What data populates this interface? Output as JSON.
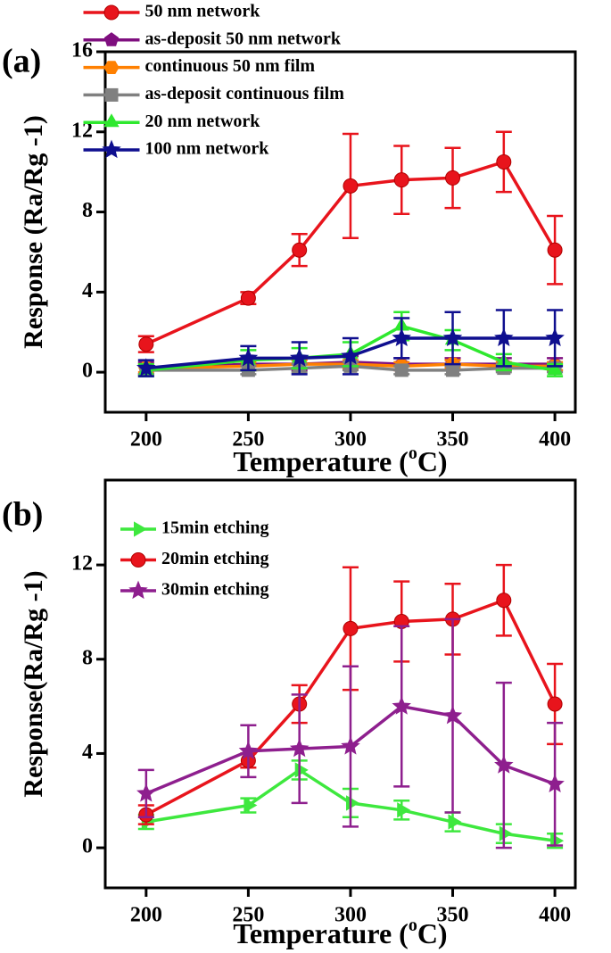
{
  "chart_data": [
    {
      "type": "line",
      "panel_label": "(a)",
      "x_label": [
        "Temperature (",
        "o",
        "C)"
      ],
      "y_label": "Response (Ra/Rg -1)",
      "x": [
        200,
        250,
        275,
        300,
        325,
        350,
        375,
        400
      ],
      "xlim": [
        180,
        410
      ],
      "xticks": [
        200,
        250,
        300,
        350,
        400
      ],
      "ylim": [
        -2,
        16
      ],
      "yticks": [
        0,
        4,
        8,
        12,
        16
      ],
      "legend": "upper left",
      "series": [
        {
          "name": "50 nm network",
          "color": "#e8141c",
          "marker": "circle",
          "values": [
            1.4,
            3.7,
            6.1,
            9.3,
            9.6,
            9.7,
            10.5,
            6.1
          ],
          "errors": [
            0.4,
            0.3,
            0.8,
            2.6,
            1.7,
            1.5,
            1.5,
            1.7
          ]
        },
        {
          "name": "as-deposit 50 nm network",
          "color": "#7f0f7f",
          "marker": "pentagon",
          "values": [
            0.2,
            0.4,
            0.4,
            0.5,
            0.4,
            0.4,
            0.4,
            0.4
          ],
          "errors": [
            0.3,
            0.3,
            0.3,
            0.3,
            0.3,
            0.3,
            0.3,
            0.3
          ]
        },
        {
          "name": "continuous 50 nm film",
          "color": "#ff8000",
          "marker": "hexagon",
          "values": [
            0.2,
            0.3,
            0.4,
            0.4,
            0.3,
            0.4,
            0.3,
            0.3
          ],
          "errors": [
            0.2,
            0.2,
            0.2,
            0.2,
            0.2,
            0.2,
            0.2,
            0.2
          ]
        },
        {
          "name": "as-deposit continuous film",
          "color": "#808080",
          "marker": "square",
          "values": [
            0.1,
            0.1,
            0.2,
            0.3,
            0.1,
            0.1,
            0.2,
            0.2
          ],
          "errors": [
            0.2,
            0.2,
            0.2,
            0.2,
            0.2,
            0.2,
            0.2,
            0.2
          ]
        },
        {
          "name": "20 nm network",
          "color": "#2ee82e",
          "marker": "triangle",
          "values": [
            0.1,
            0.6,
            0.7,
            0.9,
            2.3,
            1.6,
            0.5,
            0.1
          ],
          "errors": [
            0.3,
            0.5,
            0.5,
            0.6,
            0.7,
            0.5,
            0.4,
            0.3
          ]
        },
        {
          "name": "100 nm network",
          "color": "#0f0f8f",
          "marker": "star",
          "values": [
            0.2,
            0.7,
            0.7,
            0.8,
            1.7,
            1.7,
            1.7,
            1.7
          ],
          "errors": [
            0.4,
            0.6,
            0.8,
            0.9,
            1.0,
            1.3,
            1.4,
            1.4
          ]
        }
      ]
    },
    {
      "type": "line",
      "panel_label": "(b)",
      "x_label": [
        "Temperature (",
        "o",
        "C)"
      ],
      "y_label": "Response(Ra/Rg -1)",
      "x": [
        200,
        250,
        275,
        300,
        325,
        350,
        375,
        400
      ],
      "xlim": [
        180,
        410
      ],
      "xticks": [
        200,
        250,
        300,
        350,
        400
      ],
      "ylim": [
        -1.7,
        15.6
      ],
      "yticks": [
        0,
        4,
        8,
        12
      ],
      "legend": "upper left",
      "series": [
        {
          "name": "15min etching",
          "color": "#3ee83e",
          "marker": "triangle-right",
          "values": [
            1.1,
            1.8,
            3.3,
            1.9,
            1.6,
            1.1,
            0.6,
            0.3
          ],
          "errors": [
            0.3,
            0.3,
            0.4,
            0.6,
            0.4,
            0.4,
            0.4,
            0.3
          ]
        },
        {
          "name": "20min etching",
          "color": "#e8141c",
          "marker": "circle",
          "values": [
            1.4,
            3.7,
            6.1,
            9.3,
            9.6,
            9.7,
            10.5,
            6.1
          ],
          "errors": [
            0.4,
            0.3,
            0.8,
            2.6,
            1.7,
            1.5,
            1.5,
            1.7
          ]
        },
        {
          "name": "30min etching",
          "color": "#8e1f8e",
          "marker": "star",
          "values": [
            2.3,
            4.1,
            4.2,
            4.3,
            6.0,
            5.6,
            3.5,
            2.7
          ],
          "errors": [
            1.0,
            1.1,
            2.3,
            3.4,
            3.4,
            4.1,
            3.5,
            2.6
          ]
        }
      ]
    }
  ]
}
